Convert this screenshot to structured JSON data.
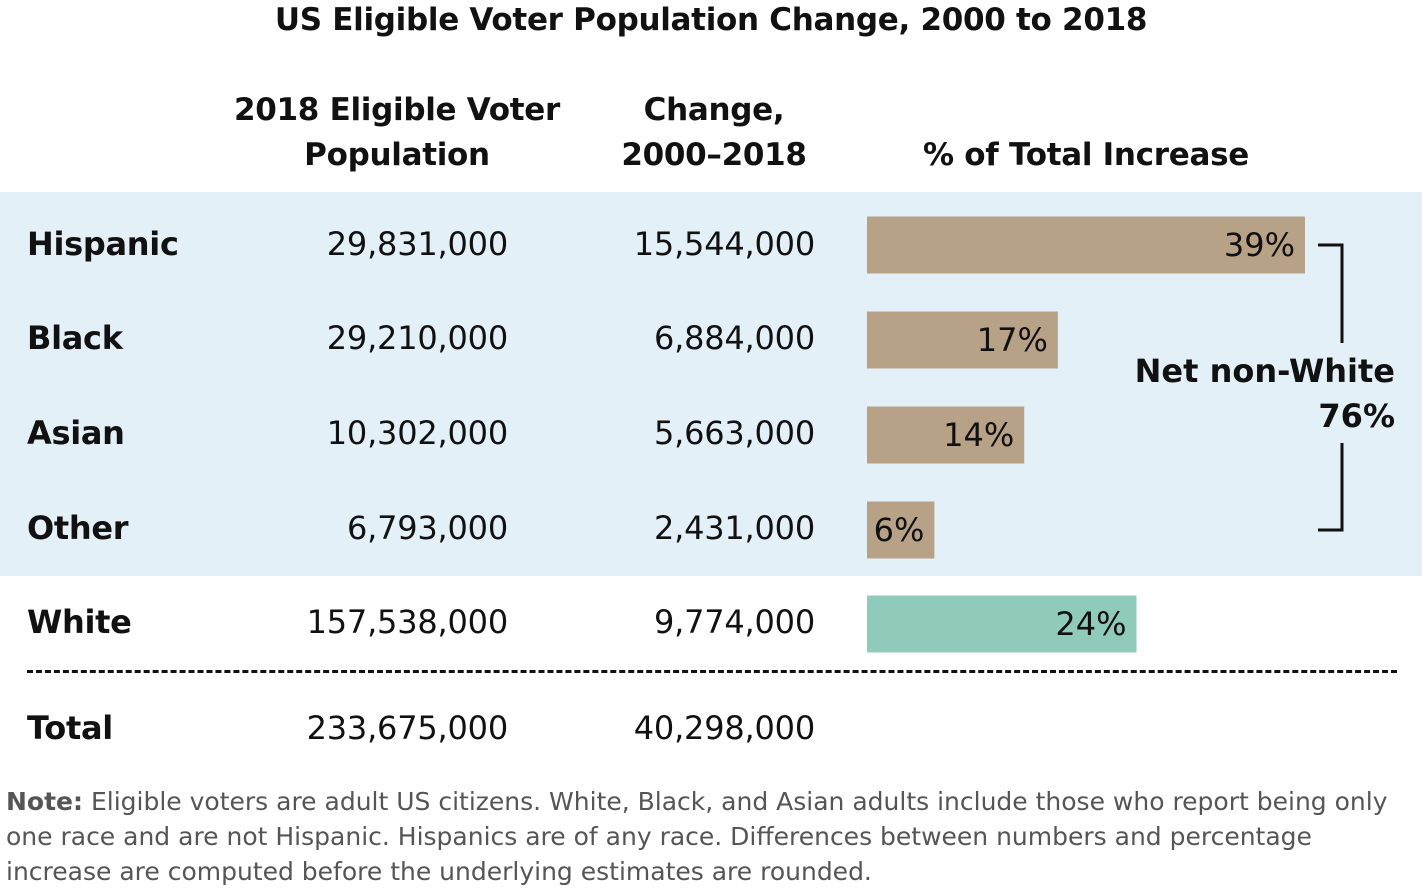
{
  "title": "US Eligible Voter Population Change, 2000 to 2018",
  "headers": {
    "population_line1": "2018 Eligible Voter",
    "population_line2": "Population",
    "change_line1": "Change,",
    "change_line2": "2000–2018",
    "percent": "% of Total Increase"
  },
  "chart_data": {
    "type": "bar",
    "title": "US Eligible Voter Population Change, 2000 to 2018",
    "categories": [
      "Hispanic",
      "Black",
      "Asian",
      "Other",
      "White"
    ],
    "series": [
      {
        "name": "2018 Eligible Voter Population",
        "values": [
          "29,831,000",
          "29,210,000",
          "10,302,000",
          "6,793,000",
          "157,538,000"
        ]
      },
      {
        "name": "Change, 2000–2018",
        "values": [
          "15,544,000",
          "6,884,000",
          "5,663,000",
          "2,431,000",
          "9,774,000"
        ]
      },
      {
        "name": "% of Total Increase",
        "values": [
          39,
          17,
          14,
          6,
          24
        ],
        "labels": [
          "39%",
          "17%",
          "14%",
          "6%",
          "24%"
        ]
      }
    ],
    "bar_colors": [
      "#b7a287",
      "#b7a287",
      "#b7a287",
      "#b7a287",
      "#8fcabb"
    ],
    "total": {
      "label": "Total",
      "population": "233,675,000",
      "change": "40,298,000"
    },
    "annotation": {
      "line1": "Net non-White",
      "line2": "76%"
    },
    "highlight_band_color": "#e4f0f8"
  },
  "note": {
    "label": "Note:",
    "text": " Eligible voters are adult US citizens. White, Black, and Asian adults include those who report being only one race and are not Hispanic. Hispanics are of any race. Differences between numbers and percentage increase are computed before the underlying estimates are rounded."
  }
}
